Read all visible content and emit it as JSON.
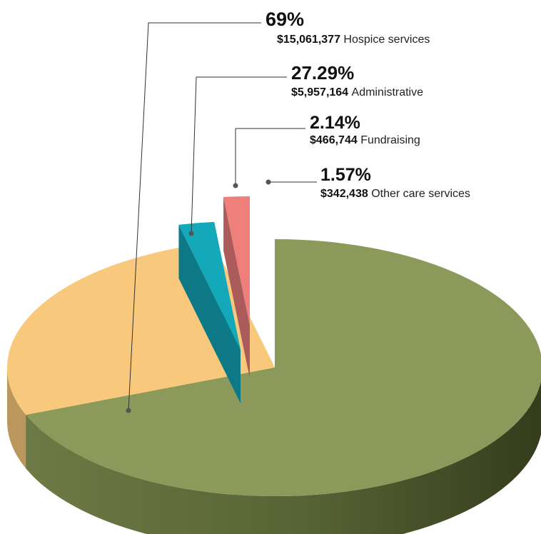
{
  "chart_data": {
    "type": "pie",
    "title": "",
    "slices": [
      {
        "label": "Hospice services",
        "percent_label": "69%",
        "amount_label": "$15,061,377",
        "value": 15061377,
        "percent": 69.0,
        "color": "#8b9a5b"
      },
      {
        "label": "Administrative",
        "percent_label": "27.29%",
        "amount_label": "$5,957,164",
        "value": 5957164,
        "percent": 27.29,
        "color": "#f8c97c"
      },
      {
        "label": "Fundraising",
        "percent_label": "2.14%",
        "amount_label": "$466,744",
        "value": 466744,
        "percent": 2.14,
        "color": "#13a8ba"
      },
      {
        "label": "Other care services",
        "percent_label": "1.57%",
        "amount_label": "$342,438",
        "value": 342438,
        "percent": 1.57,
        "color": "#ee7f7b"
      }
    ],
    "legend": "callouts-top-right"
  }
}
